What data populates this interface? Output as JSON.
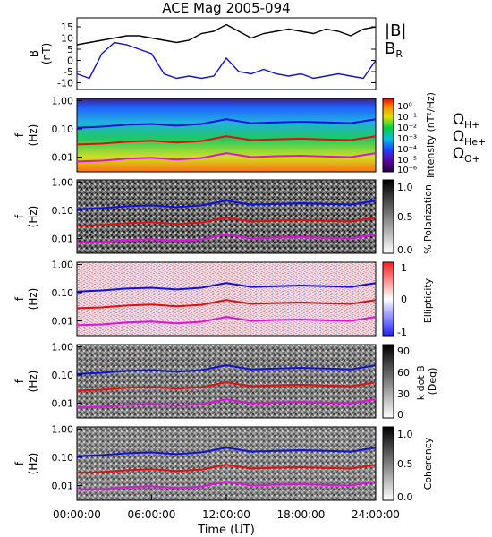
{
  "title": "ACE Mag 2005-094",
  "time_axis": {
    "label": "Time (UT)",
    "ticks": [
      "00:00:00",
      "06:00:00",
      "12:00:00",
      "18:00:00",
      "24:00:00"
    ],
    "range_hours": [
      0,
      24
    ]
  },
  "freq_axis": {
    "label_top": "f",
    "label_bottom": "(Hz)",
    "ticks": [
      "1.00",
      "0.10",
      "0.01"
    ],
    "scale": "log",
    "range": [
      0.003,
      1.2
    ]
  },
  "gyro_labels": [
    {
      "symbol": "Ω",
      "sub": "H+",
      "color": "#1010e0"
    },
    {
      "symbol": "Ω",
      "sub": "He+",
      "color": "#e01010"
    },
    {
      "symbol": "Ω",
      "sub": "O+",
      "color": "#e010e0"
    }
  ],
  "colors": {
    "b_total": "#000000",
    "b_r": "#1010e0",
    "h_plus": "#1010e0",
    "he_plus": "#e01010",
    "o_plus": "#e010e0"
  },
  "chart_data": [
    {
      "type": "line",
      "panel": "magnetic-field",
      "ylabel_top": "B",
      "ylabel_bottom": "(nT)",
      "yticks": [
        "15",
        "10",
        "5",
        "0",
        "-5",
        "-10"
      ],
      "ylim": [
        -13,
        19
      ],
      "x": [
        0,
        1,
        2,
        3,
        4,
        5,
        6,
        7,
        8,
        9,
        10,
        11,
        12,
        13,
        14,
        15,
        16,
        17,
        18,
        19,
        20,
        21,
        22,
        23,
        24
      ],
      "series": [
        {
          "name": "|B|",
          "color": "#000000",
          "values": [
            7,
            8,
            9,
            10,
            11,
            11,
            10,
            9,
            8,
            9,
            12,
            13,
            16,
            13,
            10,
            12,
            13,
            14,
            13,
            12,
            14,
            13,
            11,
            14,
            15
          ]
        },
        {
          "name": "B_R",
          "color": "#1010e0",
          "values": [
            -6,
            -8,
            3,
            8,
            7,
            5,
            3,
            -6,
            -8,
            -7,
            -8,
            -7,
            1,
            -5,
            -6,
            -4,
            -6,
            -7,
            -6,
            -8,
            -7,
            -6,
            -7,
            -8,
            0
          ]
        }
      ]
    },
    {
      "type": "heatmap",
      "panel": "intensity",
      "colorbar_label": "Intensity (nT²/Hz)",
      "colorbar_ticks": [
        "10⁰",
        "10⁻¹",
        "10⁻²",
        "10⁻³",
        "10⁻⁴",
        "10⁻⁵",
        "10⁻⁶"
      ]
    },
    {
      "type": "heatmap",
      "panel": "polarization",
      "colorbar_label": "% Polarization",
      "colorbar_ticks": [
        "1.0",
        "0.5",
        "0.0"
      ]
    },
    {
      "type": "heatmap",
      "panel": "ellipticity",
      "colorbar_label": "Ellipticity",
      "colorbar_ticks": [
        "1",
        "0",
        "-1"
      ]
    },
    {
      "type": "heatmap",
      "panel": "k-dot-b",
      "colorbar_label": "k dot B (Deg)",
      "colorbar_ticks": [
        "90",
        "60",
        "30",
        "0"
      ]
    },
    {
      "type": "heatmap",
      "panel": "coherency",
      "colorbar_label": "Coherency",
      "colorbar_ticks": [
        "1.0",
        "0.5",
        "0.0"
      ]
    }
  ],
  "gyro_frequencies": {
    "hours": [
      0,
      2,
      4,
      6,
      8,
      10,
      12,
      14,
      16,
      18,
      20,
      22,
      24
    ],
    "h_plus_hz": [
      0.11,
      0.12,
      0.14,
      0.15,
      0.13,
      0.15,
      0.22,
      0.16,
      0.17,
      0.18,
      0.17,
      0.16,
      0.22
    ],
    "he_plus_hz": [
      0.028,
      0.03,
      0.035,
      0.038,
      0.033,
      0.037,
      0.055,
      0.04,
      0.043,
      0.045,
      0.042,
      0.04,
      0.055
    ],
    "o_plus_hz": [
      0.007,
      0.0075,
      0.0088,
      0.0095,
      0.0082,
      0.0093,
      0.0138,
      0.01,
      0.0108,
      0.0112,
      0.0105,
      0.01,
      0.0138
    ]
  }
}
